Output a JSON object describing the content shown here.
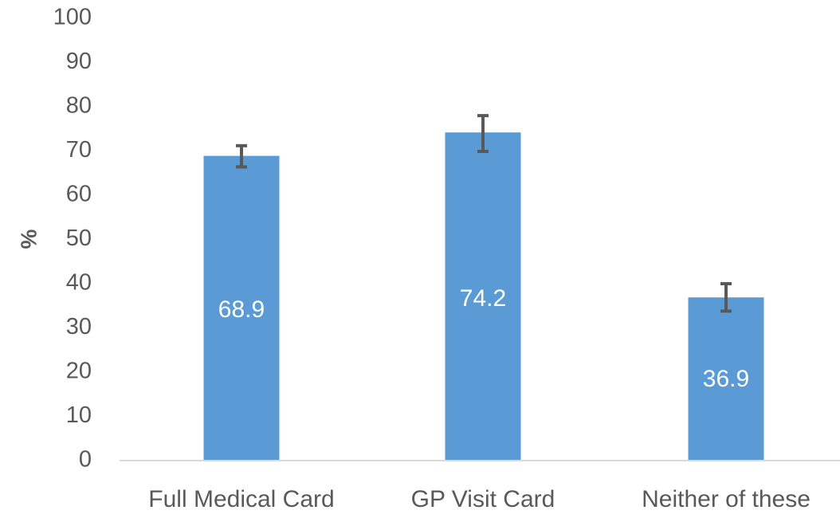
{
  "chart_data": {
    "type": "bar",
    "title": "",
    "xlabel": "",
    "ylabel": "%",
    "ylim": [
      0,
      100
    ],
    "yticks": [
      0,
      10,
      20,
      30,
      40,
      50,
      60,
      70,
      80,
      90,
      100
    ],
    "categories": [
      "Full Medical Card",
      "GP Visit Card",
      "Neither of these"
    ],
    "values": [
      68.9,
      74.2,
      36.9
    ],
    "data_labels": [
      "68.9",
      "74.2",
      "36.9"
    ],
    "error_bars": {
      "lower": [
        66.4,
        69.9,
        33.8
      ],
      "upper": [
        71.2,
        78.0,
        40.0
      ]
    },
    "grid": false,
    "legend": "none",
    "colors": {
      "bar": "#5b9bd5",
      "error_bar": "#595959",
      "axis_line": "#d9d9d9",
      "text": "#595959",
      "data_label": "#ffffff"
    }
  }
}
